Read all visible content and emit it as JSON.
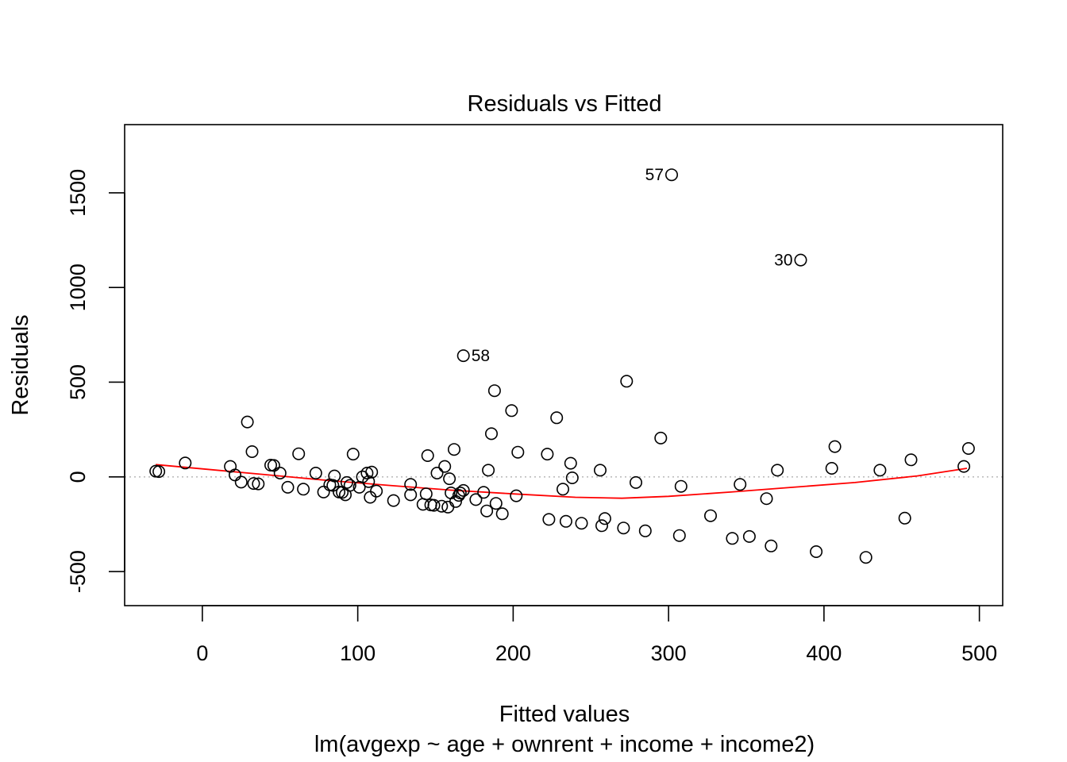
{
  "chart_data": {
    "type": "scatter",
    "title": "Residuals vs Fitted",
    "xlabel": "Fitted values",
    "subtitle": "lm(avgexp ~ age + ownrent + income + income2)",
    "ylabel": "Residuals",
    "xlim": [
      -50,
      515
    ],
    "ylim": [
      -680,
      1860
    ],
    "x_ticks": [
      0,
      100,
      200,
      300,
      400,
      500
    ],
    "y_ticks": [
      -500,
      0,
      500,
      1000,
      1500
    ],
    "grid": false,
    "zero_line": {
      "y": 0,
      "color": "#bebebe",
      "style": "dotted"
    },
    "colors": {
      "points": "#000000",
      "smooth": "#ff0000",
      "frame": "#000000"
    },
    "points": [
      [
        -30,
        30
      ],
      [
        -28,
        28
      ],
      [
        -11,
        73
      ],
      [
        18,
        55
      ],
      [
        21,
        10
      ],
      [
        25,
        -28
      ],
      [
        29,
        290
      ],
      [
        32,
        133
      ],
      [
        33,
        -35
      ],
      [
        36,
        -37
      ],
      [
        44,
        62
      ],
      [
        46,
        60
      ],
      [
        50,
        20
      ],
      [
        55,
        -55
      ],
      [
        62,
        122
      ],
      [
        65,
        -65
      ],
      [
        73,
        20
      ],
      [
        78,
        -80
      ],
      [
        82,
        -42
      ],
      [
        84,
        -45
      ],
      [
        85,
        5
      ],
      [
        88,
        -80
      ],
      [
        90,
        -82
      ],
      [
        92,
        -95
      ],
      [
        93,
        -30
      ],
      [
        95,
        -45
      ],
      [
        97,
        120
      ],
      [
        101,
        -55
      ],
      [
        103,
        0
      ],
      [
        106,
        20
      ],
      [
        107,
        -25
      ],
      [
        108,
        -108
      ],
      [
        109,
        25
      ],
      [
        112,
        -75
      ],
      [
        123,
        -125
      ],
      [
        134,
        -40
      ],
      [
        134,
        -95
      ],
      [
        142,
        -145
      ],
      [
        144,
        -90
      ],
      [
        145,
        112
      ],
      [
        147,
        -148
      ],
      [
        149,
        -150
      ],
      [
        151,
        20
      ],
      [
        154,
        -155
      ],
      [
        156,
        55
      ],
      [
        158,
        -160
      ],
      [
        159,
        -10
      ],
      [
        160,
        -85
      ],
      [
        162,
        145
      ],
      [
        163,
        -130
      ],
      [
        165,
        -98
      ],
      [
        166,
        -85
      ],
      [
        168,
        -72
      ],
      [
        168,
        640
      ],
      [
        176,
        -120
      ],
      [
        181,
        -82
      ],
      [
        183,
        -180
      ],
      [
        184,
        35
      ],
      [
        186,
        228
      ],
      [
        188,
        455
      ],
      [
        189,
        -140
      ],
      [
        193,
        -195
      ],
      [
        199,
        350
      ],
      [
        202,
        -100
      ],
      [
        203,
        130
      ],
      [
        222,
        120
      ],
      [
        223,
        -225
      ],
      [
        228,
        312
      ],
      [
        232,
        -65
      ],
      [
        234,
        -235
      ],
      [
        237,
        72
      ],
      [
        238,
        -5
      ],
      [
        244,
        -245
      ],
      [
        256,
        35
      ],
      [
        257,
        -258
      ],
      [
        259,
        -220
      ],
      [
        271,
        -270
      ],
      [
        273,
        505
      ],
      [
        279,
        -30
      ],
      [
        285,
        -285
      ],
      [
        295,
        205
      ],
      [
        302,
        1595
      ],
      [
        307,
        -310
      ],
      [
        308,
        -50
      ],
      [
        327,
        -205
      ],
      [
        341,
        -325
      ],
      [
        346,
        -40
      ],
      [
        352,
        -315
      ],
      [
        363,
        -115
      ],
      [
        366,
        -365
      ],
      [
        370,
        35
      ],
      [
        385,
        1145
      ],
      [
        395,
        -395
      ],
      [
        405,
        45
      ],
      [
        407,
        160
      ],
      [
        427,
        -425
      ],
      [
        436,
        35
      ],
      [
        452,
        -218
      ],
      [
        456,
        90
      ],
      [
        490,
        55
      ],
      [
        493,
        150
      ]
    ],
    "labeled_points": [
      {
        "label": "57",
        "x": 302,
        "y": 1595,
        "side": "left"
      },
      {
        "label": "30",
        "x": 385,
        "y": 1145,
        "side": "left"
      },
      {
        "label": "58",
        "x": 168,
        "y": 640,
        "side": "right"
      }
    ],
    "smooth_line": [
      [
        -30,
        65
      ],
      [
        0,
        42
      ],
      [
        40,
        12
      ],
      [
        80,
        -18
      ],
      [
        120,
        -45
      ],
      [
        160,
        -70
      ],
      [
        200,
        -90
      ],
      [
        240,
        -108
      ],
      [
        270,
        -113
      ],
      [
        300,
        -103
      ],
      [
        340,
        -80
      ],
      [
        380,
        -55
      ],
      [
        420,
        -30
      ],
      [
        460,
        5
      ],
      [
        492,
        45
      ]
    ]
  }
}
